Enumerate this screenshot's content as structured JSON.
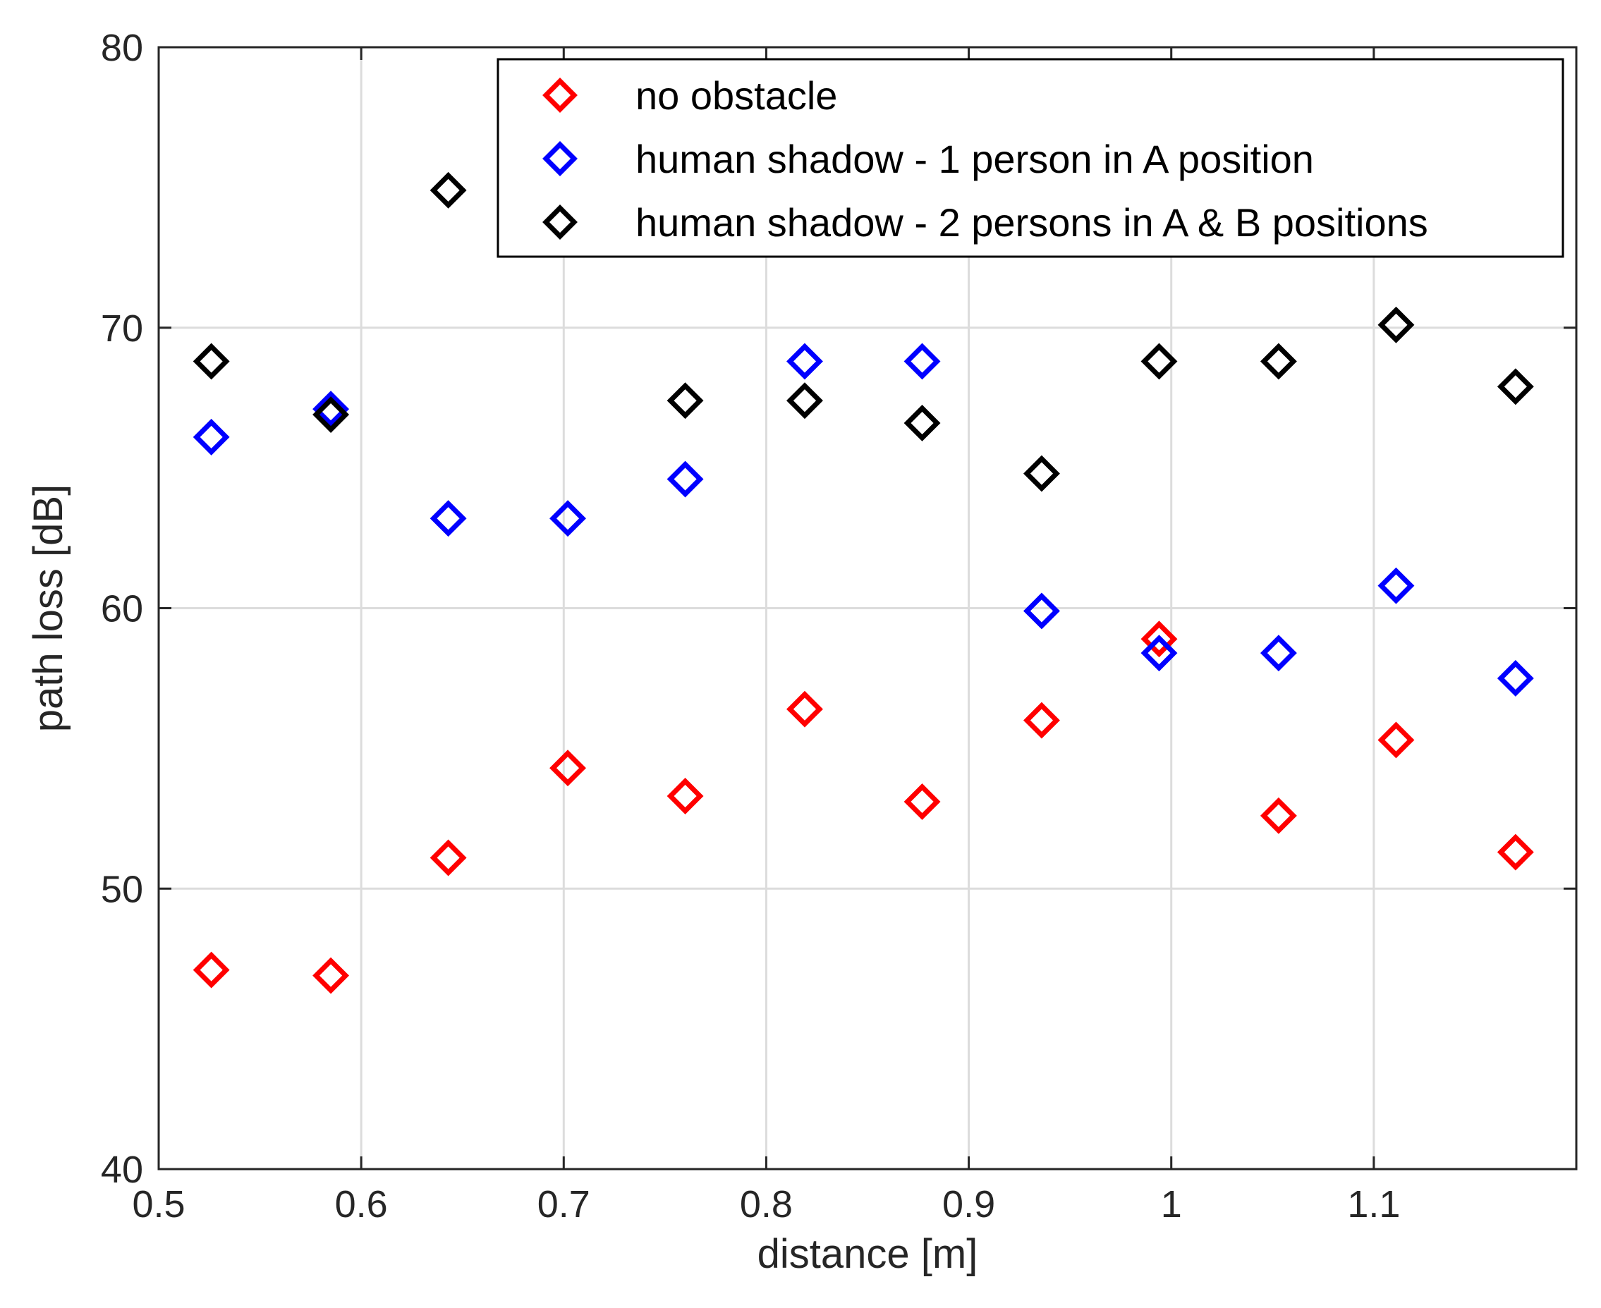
{
  "chart_data": {
    "type": "scatter",
    "title": "",
    "xlabel": "distance [m]",
    "ylabel": "path loss [dB]",
    "xlim": [
      0.5,
      1.2
    ],
    "ylim": [
      40,
      80
    ],
    "xticks": [
      0.5,
      0.6,
      0.7,
      0.8,
      0.9,
      1.0,
      1.1
    ],
    "xtick_labels": [
      "0.5",
      "0.6",
      "0.7",
      "0.8",
      "0.9",
      "1",
      "1.1"
    ],
    "yticks": [
      40,
      50,
      60,
      70,
      80
    ],
    "ytick_labels": [
      "40",
      "50",
      "60",
      "70",
      "80"
    ],
    "grid": true,
    "legend_position": "top-right",
    "marker": "diamond",
    "series": [
      {
        "name": "no obstacle",
        "color": "#ff0000",
        "x": [
          0.526,
          0.585,
          0.643,
          0.702,
          0.76,
          0.819,
          0.877,
          0.936,
          0.994,
          1.053,
          1.111,
          1.17
        ],
        "y": [
          47.1,
          46.9,
          51.1,
          54.3,
          53.3,
          56.4,
          53.1,
          56.0,
          58.9,
          52.6,
          55.3,
          51.3
        ]
      },
      {
        "name": "human shadow - 1 person in A position",
        "color": "#0000ff",
        "x": [
          0.526,
          0.585,
          0.643,
          0.702,
          0.76,
          0.819,
          0.877,
          0.936,
          0.994,
          1.053,
          1.111,
          1.17
        ],
        "y": [
          66.1,
          67.1,
          63.2,
          63.2,
          64.6,
          68.8,
          68.8,
          59.9,
          58.4,
          58.4,
          60.8,
          57.5
        ]
      },
      {
        "name": "human shadow - 2 persons in A & B positions",
        "color": "#000000",
        "x": [
          0.526,
          0.585,
          0.643,
          0.76,
          0.819,
          0.877,
          0.936,
          0.994,
          1.053,
          1.111,
          1.17
        ],
        "y": [
          68.8,
          66.9,
          74.9,
          67.4,
          67.4,
          66.6,
          64.8,
          68.8,
          68.8,
          70.1,
          67.9
        ]
      }
    ]
  }
}
